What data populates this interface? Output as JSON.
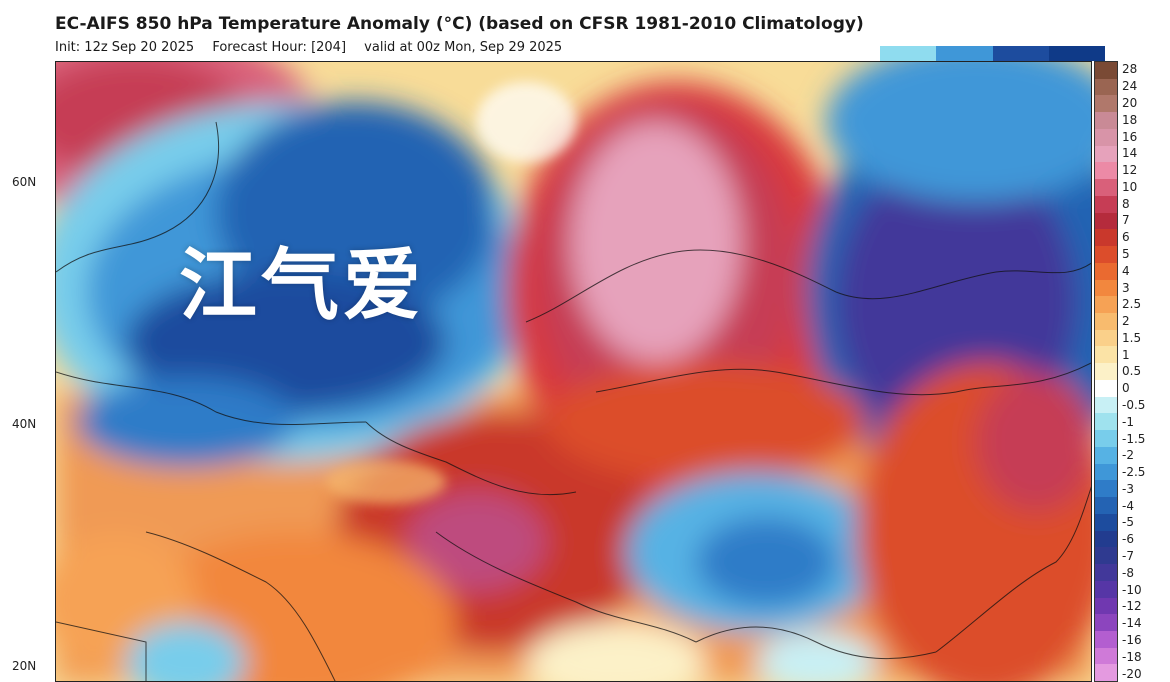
{
  "header": {
    "title": "EC-AIFS 850 hPa Temperature Anomaly (°C) (based on CFSR 1981-2010 Climatology)",
    "init": "Init: 12z Sep 20 2025",
    "forecast_hour": "Forecast Hour: [204]",
    "valid": "valid at 00z Mon, Sep 29 2025"
  },
  "map": {
    "latitude_labels": [
      "60N",
      "40N",
      "20N"
    ],
    "watermark": "江气爱"
  },
  "legend": {
    "labels": [
      "28",
      "24",
      "20",
      "18",
      "16",
      "14",
      "12",
      "10",
      "8",
      "7",
      "6",
      "5",
      "4",
      "3",
      "2.5",
      "2",
      "1.5",
      "1",
      "0.5",
      "0",
      "-0.5",
      "-1",
      "-1.5",
      "-2",
      "-2.5",
      "-3",
      "-4",
      "-5",
      "-6",
      "-7",
      "-8",
      "-10",
      "-12",
      "-14",
      "-16",
      "-18",
      "-20"
    ],
    "colors": [
      "#7a4a35",
      "#9a6552",
      "#b0786b",
      "#c98a96",
      "#d894a8",
      "#e6a2bb",
      "#ec8aa6",
      "#d9607a",
      "#c63d55",
      "#b52b3c",
      "#c9382c",
      "#dc4d2b",
      "#ea6a30",
      "#f2873e",
      "#f6a255",
      "#f8bb6e",
      "#fad08a",
      "#fbe3a6",
      "#fcf1c8",
      "#ffffff",
      "#c8f0f5",
      "#9fe2ee",
      "#78cdeb",
      "#56b2e4",
      "#3f97d8",
      "#2f7cc8",
      "#2463b3",
      "#1d4c9e",
      "#223c8f",
      "#2f3a90",
      "#42389a",
      "#5636a6",
      "#7038b0",
      "#8c45be",
      "#b35ed0",
      "#cf7ad8",
      "#e49ae0"
    ],
    "top_strip_colors": [
      "#8fdcef",
      "#3f97d8",
      "#1d4c9e",
      "#0f3a88"
    ]
  }
}
